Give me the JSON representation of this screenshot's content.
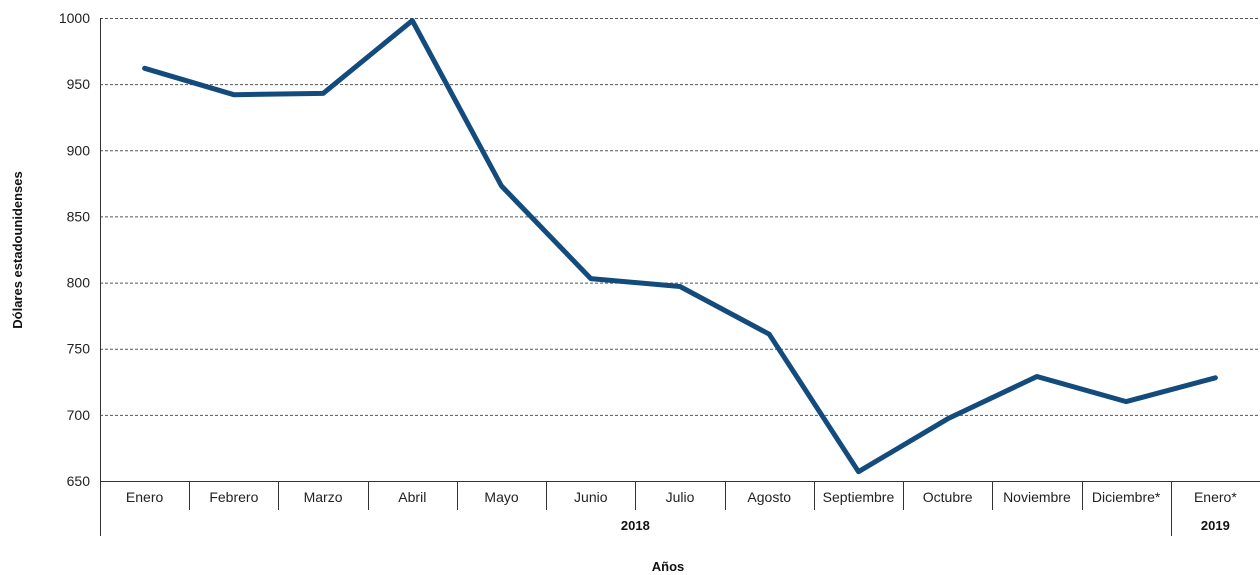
{
  "chart_data": {
    "type": "line",
    "ylabel": "Dólares estadounidenses",
    "xlabel": "Años",
    "ylim": [
      650,
      1000
    ],
    "yticks": [
      650,
      700,
      750,
      800,
      850,
      900,
      950,
      1000
    ],
    "grid": true,
    "categories": [
      "Enero",
      "Febrero",
      "Marzo",
      "Abril",
      "Mayo",
      "Junio",
      "Julio",
      "Agosto",
      "Septiembre",
      "Octubre",
      "Noviembre",
      "Diciembre*",
      "Enero*"
    ],
    "groups": [
      {
        "label": "2018",
        "from": 0,
        "to": 11
      },
      {
        "label": "2019",
        "from": 12,
        "to": 12
      }
    ],
    "series": [
      {
        "color": "#134b7d",
        "values": [
          962,
          942,
          943,
          998,
          873,
          803,
          797,
          761,
          657,
          697,
          729,
          710,
          728
        ]
      }
    ]
  }
}
